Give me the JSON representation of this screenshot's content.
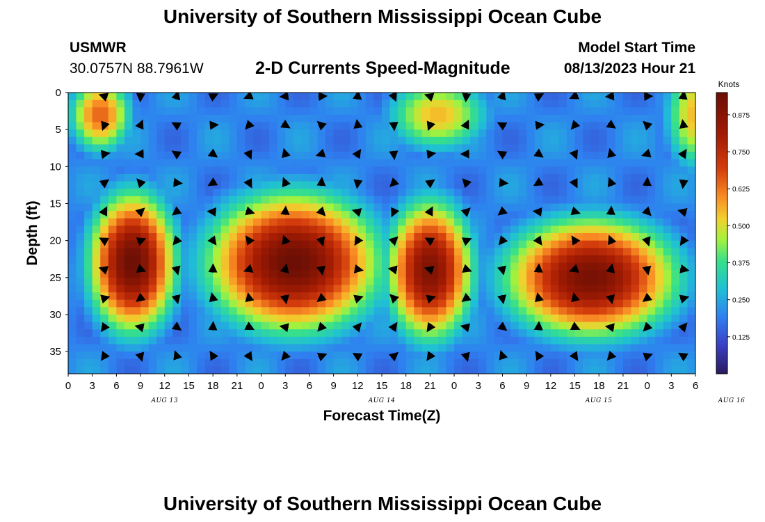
{
  "header": {
    "title": "University of Southern Mississippi Ocean Cube",
    "station_name": "USMWR",
    "coordinates": "30.0757N  88.7961W",
    "chart_title": "2-D Currents Speed-Magnitude",
    "model_label": "Model Start Time",
    "model_time": "08/13/2023 Hour 21"
  },
  "footer": {
    "title": "University of Southern Mississippi Ocean Cube"
  },
  "chart_data": {
    "type": "heatmap",
    "title": "2-D Currents Speed-Magnitude",
    "xlabel": "Forecast Time(Z)",
    "ylabel": "Depth (ft)",
    "colorbar_label": "Knots",
    "x_tick_labels": [
      "0",
      "3",
      "6",
      "9",
      "12",
      "15",
      "18",
      "21",
      "0",
      "3",
      "6",
      "9",
      "12",
      "15",
      "18",
      "21",
      "0",
      "3",
      "6",
      "9",
      "12",
      "15",
      "18",
      "21",
      "0",
      "3",
      "6"
    ],
    "date_labels": [
      {
        "label": "AUG 13",
        "tick_index": 4
      },
      {
        "label": "AUG 14",
        "tick_index": 13
      },
      {
        "label": "AUG 15",
        "tick_index": 22
      },
      {
        "label": "AUG 16",
        "tick_index": 27.5
      }
    ],
    "x_range_hours": [
      0,
      78
    ],
    "y_ticks": [
      "0",
      "5",
      "10",
      "15",
      "20",
      "25",
      "30",
      "35"
    ],
    "y_range": [
      0,
      38
    ],
    "colorbar_ticks": [
      "0.125",
      "0.250",
      "0.375",
      "0.500",
      "0.625",
      "0.750",
      "0.875"
    ],
    "colorbar_range": [
      0,
      0.95
    ],
    "speed_features": [
      {
        "t": 4,
        "d": 3,
        "speed": 0.65,
        "sigma_t": 3,
        "sigma_d": 4
      },
      {
        "t": 8,
        "d": 23,
        "speed": 0.95,
        "sigma_t": 4,
        "sigma_d": 7
      },
      {
        "t": 28,
        "d": 23,
        "speed": 0.95,
        "sigma_t": 8,
        "sigma_d": 7
      },
      {
        "t": 45,
        "d": 24,
        "speed": 0.9,
        "sigma_t": 4,
        "sigma_d": 7
      },
      {
        "t": 46,
        "d": 3,
        "speed": 0.55,
        "sigma_t": 5,
        "sigma_d": 4
      },
      {
        "t": 65,
        "d": 25,
        "speed": 0.92,
        "sigma_t": 8,
        "sigma_d": 6
      },
      {
        "t": 78,
        "d": 3,
        "speed": 0.55,
        "sigma_t": 3,
        "sigma_d": 6
      }
    ]
  }
}
